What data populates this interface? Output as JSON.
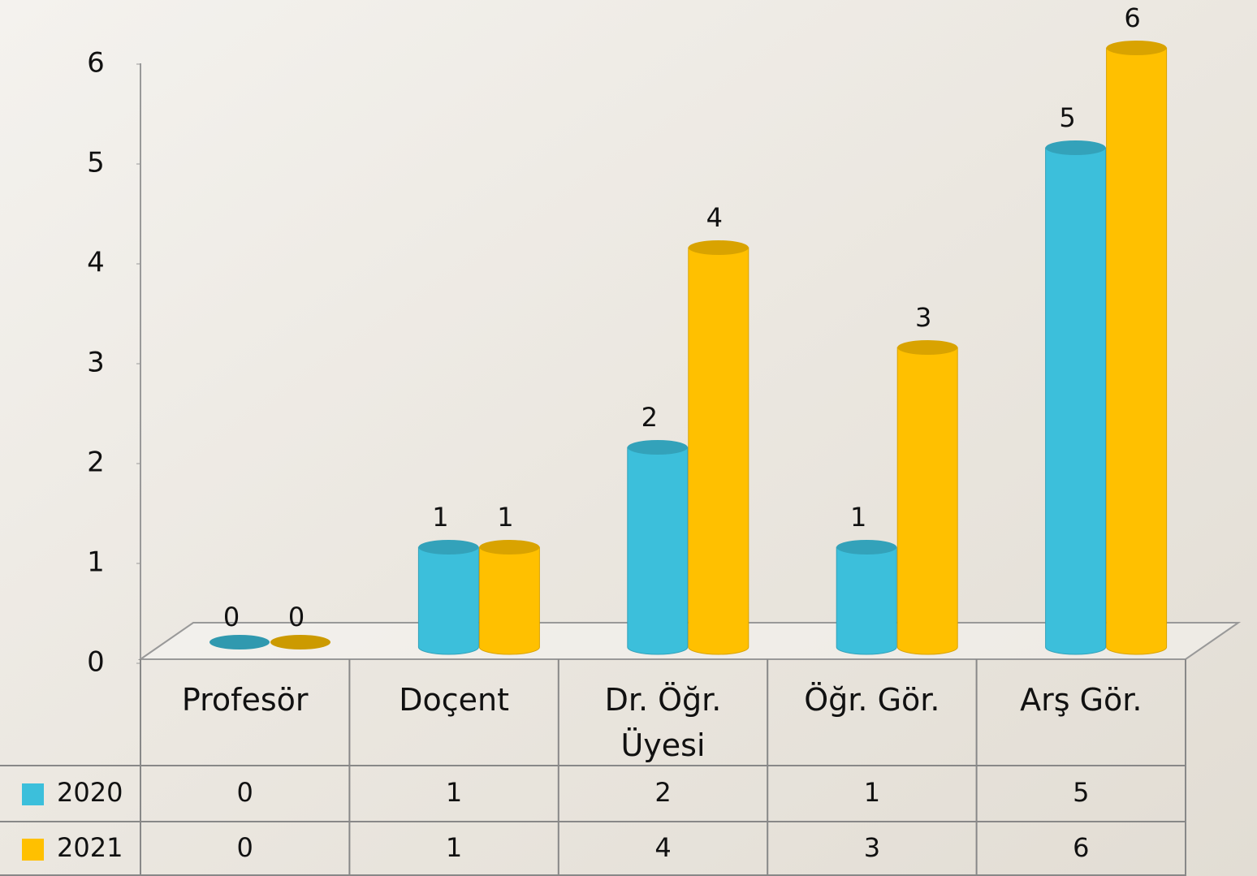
{
  "chart_data": {
    "type": "cylinder-bar",
    "categories": [
      "Profesör",
      "Doçent",
      "Dr. Öğr. Üyesi",
      "Öğr. Gör.",
      "Arş Gör."
    ],
    "series": [
      {
        "name": "2020",
        "color": "#3cbfdb",
        "values": [
          0,
          1,
          2,
          1,
          5
        ]
      },
      {
        "name": "2021",
        "color": "#ffc000",
        "values": [
          0,
          1,
          4,
          3,
          6
        ]
      }
    ],
    "ylim": [
      0,
      6
    ],
    "yticks": [
      0,
      1,
      2,
      3,
      4,
      5,
      6
    ]
  }
}
